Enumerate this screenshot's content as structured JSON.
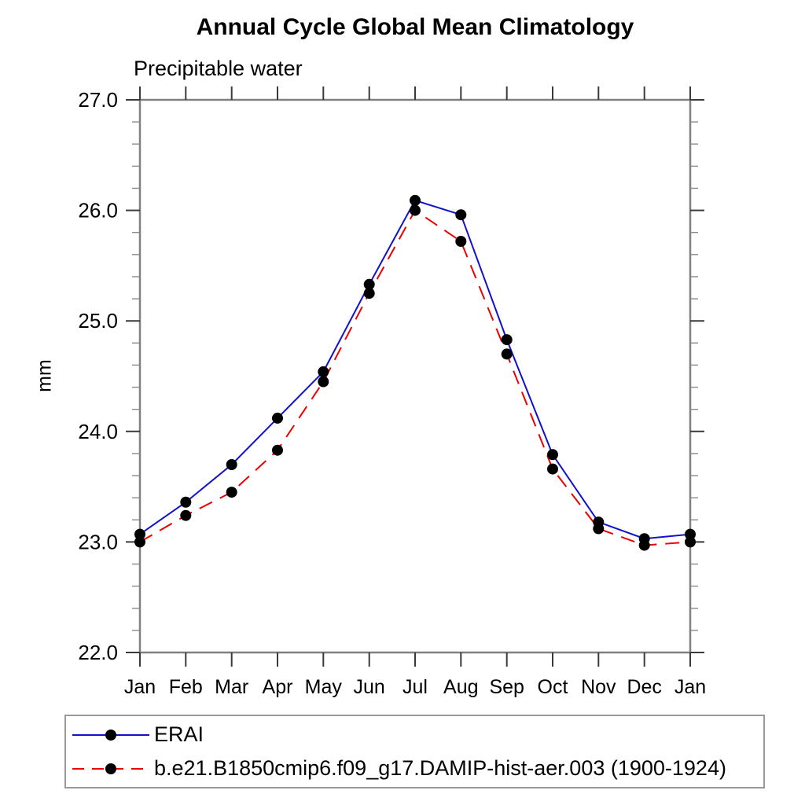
{
  "title": "Annual Cycle Global Mean Climatology",
  "subtitle": "Precipitable water",
  "y_axis": {
    "label": "mm",
    "major_tick_values": [
      22.0,
      23.0,
      24.0,
      25.0,
      26.0,
      27.0
    ],
    "major_tick_labels": [
      "22.0",
      "23.0",
      "24.0",
      "25.0",
      "26.0",
      "27.0"
    ],
    "minor_step": 0.2
  },
  "x_axis": {
    "tick_labels": [
      "Jan",
      "Feb",
      "Mar",
      "Apr",
      "May",
      "Jun",
      "Jul",
      "Aug",
      "Sep",
      "Oct",
      "Nov",
      "Dec",
      "Jan"
    ]
  },
  "colors": {
    "erai_line": "#1111cc",
    "model_line": "#ee0000",
    "marker": "#000000",
    "axis_frame": "#808080",
    "major_tick": "#3a3a3a",
    "minor_tick": "#8a8a8a",
    "legend_border": "#9a9a9a"
  },
  "chart_data": {
    "type": "line",
    "title": "Annual Cycle Global Mean Climatology",
    "subtitle": "Precipitable water",
    "ylabel": "mm",
    "ylim": [
      22.0,
      27.0
    ],
    "y_major_step": 1.0,
    "y_minor_step": 0.2,
    "grid": false,
    "legend_position": "bottom-left-box",
    "categories": [
      "Jan",
      "Feb",
      "Mar",
      "Apr",
      "May",
      "Jun",
      "Jul",
      "Aug",
      "Sep",
      "Oct",
      "Nov",
      "Dec",
      "Jan"
    ],
    "series": [
      {
        "name": "ERAI",
        "color": "#1111cc",
        "line_style": "solid",
        "marker": "filled-circle",
        "marker_color": "#000000",
        "values": [
          23.07,
          23.36,
          23.7,
          24.12,
          24.54,
          25.33,
          26.09,
          25.96,
          24.83,
          23.79,
          23.18,
          23.03,
          23.07
        ]
      },
      {
        "name": "b.e21.B1850cmip6.f09_g17.DAMIP-hist-aer.003 (1900-1924)",
        "color": "#ee0000",
        "line_style": "dashed",
        "marker": "filled-circle",
        "marker_color": "#000000",
        "values": [
          23.0,
          23.24,
          23.45,
          23.83,
          24.45,
          25.25,
          26.0,
          25.72,
          24.7,
          23.66,
          23.12,
          22.97,
          23.0
        ]
      }
    ]
  }
}
